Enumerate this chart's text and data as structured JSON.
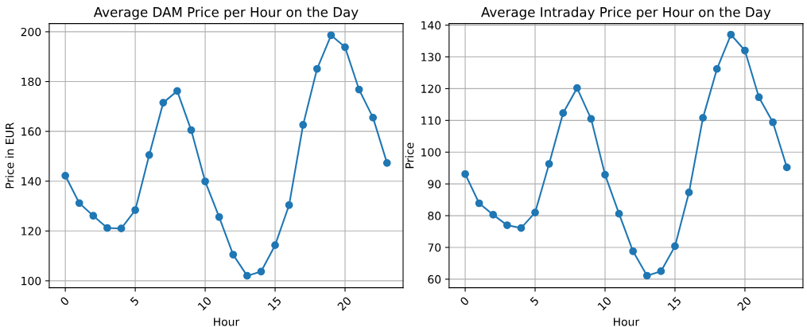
{
  "chart_data": [
    {
      "type": "line",
      "title": "Average DAM Price per Hour on the Day",
      "xlabel": "Hour",
      "ylabel": "Price in EUR",
      "x": [
        0,
        1,
        2,
        3,
        4,
        5,
        6,
        7,
        8,
        9,
        10,
        11,
        12,
        13,
        14,
        15,
        16,
        17,
        18,
        19,
        20,
        21,
        22,
        23
      ],
      "series": [
        {
          "color": "#1f77b4",
          "values": [
            142.2,
            131.2,
            126.1,
            121.2,
            121.0,
            128.4,
            150.5,
            171.5,
            176.2,
            160.5,
            139.9,
            125.6,
            110.5,
            102.0,
            103.7,
            114.3,
            130.4,
            162.6,
            185.1,
            198.6,
            193.8,
            176.8,
            165.5,
            147.3
          ]
        }
      ],
      "xlim": [
        -1.15,
        24.15
      ],
      "xticks": [
        0,
        5,
        10,
        15,
        20
      ],
      "ylim": [
        97.2,
        203.3
      ],
      "yticks": [
        100,
        120,
        140,
        160,
        180,
        200
      ],
      "grid": true,
      "marker": "circle",
      "line_style": "solid"
    },
    {
      "type": "line",
      "title": "Average Intraday Price per Hour on the Day",
      "xlabel": "Hour",
      "ylabel": "Price",
      "x": [
        0,
        1,
        2,
        3,
        4,
        5,
        6,
        7,
        8,
        9,
        10,
        11,
        12,
        13,
        14,
        15,
        16,
        17,
        18,
        19,
        20,
        21,
        22,
        23
      ],
      "series": [
        {
          "color": "#1f77b4",
          "values": [
            93.1,
            83.9,
            80.3,
            77.0,
            76.1,
            81.0,
            96.3,
            112.3,
            120.2,
            110.5,
            92.9,
            80.6,
            68.8,
            61.1,
            62.5,
            70.4,
            87.3,
            110.8,
            126.2,
            137.0,
            132.0,
            117.3,
            109.4,
            95.2
          ]
        }
      ],
      "xlim": [
        -1.15,
        24.15
      ],
      "xticks": [
        0,
        5,
        10,
        15,
        20
      ],
      "ylim": [
        57.3,
        140.5
      ],
      "yticks": [
        60,
        70,
        80,
        90,
        100,
        110,
        120,
        130,
        140
      ],
      "grid": true,
      "marker": "circle",
      "line_style": "solid"
    }
  ]
}
